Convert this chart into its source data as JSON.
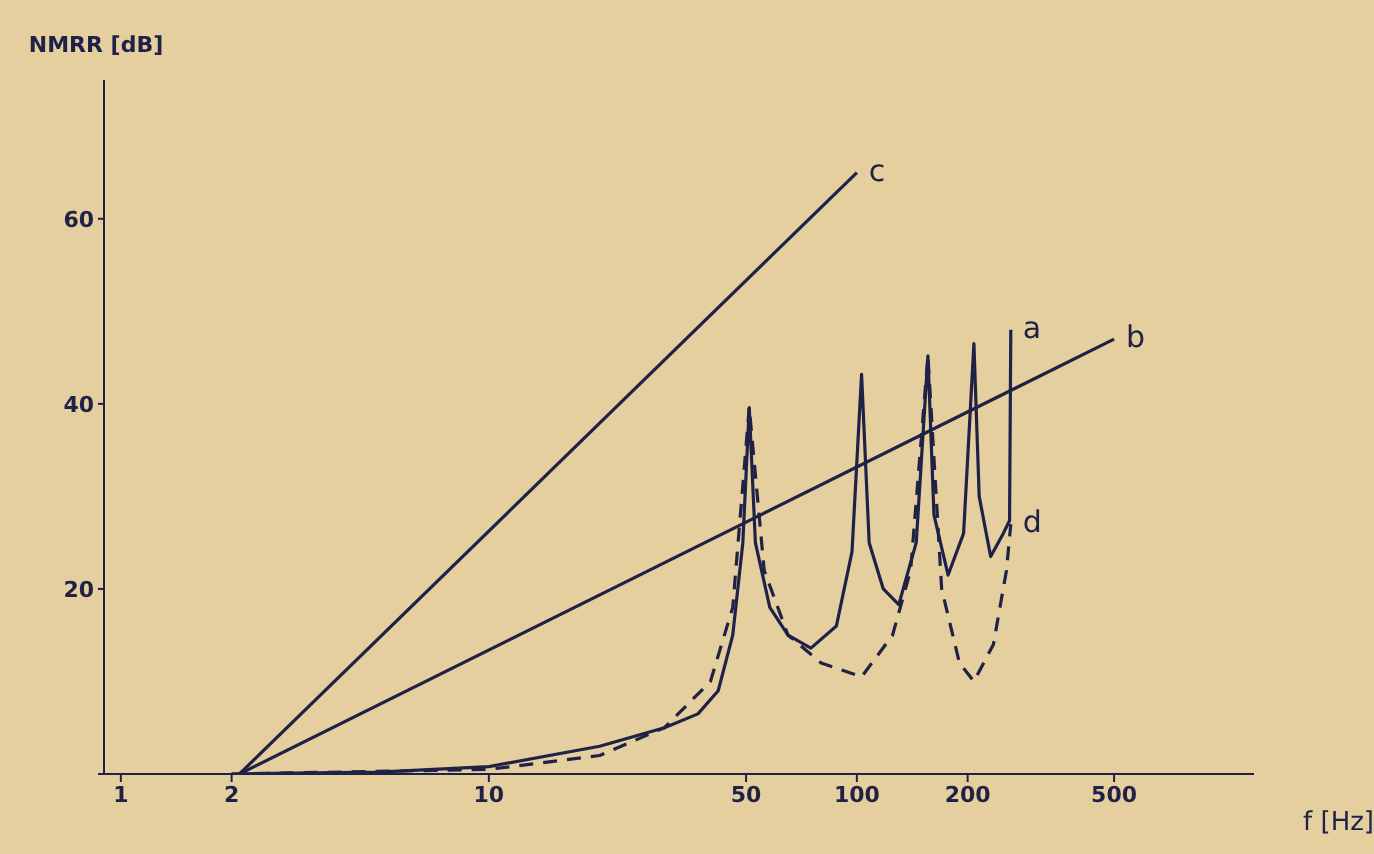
{
  "chart_data": {
    "type": "line",
    "xlabel": "f [Hz]",
    "ylabel": "NMRR [dB]",
    "log": "x",
    "xlim": [
      0.9,
      1200
    ],
    "xticks": [
      1,
      2,
      10,
      50,
      100,
      200,
      500
    ],
    "ylim": [
      0,
      75
    ],
    "yticks": [
      {
        "value": 0,
        "label": null
      },
      20,
      40,
      60
    ],
    "grid": false,
    "legend": false,
    "marker": "none",
    "series": [
      {
        "name": "a",
        "color": "#1f2147",
        "line_style": "solid",
        "x": [
          2,
          5,
          10,
          20,
          30,
          37,
          42,
          46,
          49,
          51,
          53,
          58,
          65,
          75,
          88,
          97,
          103,
          108,
          118,
          130,
          145,
          156,
          162,
          177,
          195,
          208,
          215,
          231,
          250,
          260,
          262
        ],
        "values": [
          0,
          0.2,
          0.8,
          3,
          5,
          6.5,
          9,
          15,
          25,
          39.6,
          25,
          18,
          15,
          13.6,
          16,
          24,
          43.2,
          25,
          20,
          18.3,
          25,
          45.2,
          28,
          21.5,
          26,
          46.5,
          30,
          23.5,
          26,
          27.4,
          48
        ]
      },
      {
        "name": "b",
        "color": "#1f2147",
        "line_style": "solid",
        "x": [
          2.1,
          500
        ],
        "values": [
          0,
          47
        ]
      },
      {
        "name": "c",
        "color": "#1f2147",
        "line_style": "solid",
        "x": [
          2.1,
          100
        ],
        "values": [
          0,
          65
        ]
      },
      {
        "name": "d",
        "color": "#1f2147",
        "line_style": "dashed",
        "x": [
          2,
          10,
          20,
          30,
          40,
          46,
          51,
          56,
          65,
          80,
          103,
          125,
          140,
          156,
          170,
          190,
          208,
          235,
          255,
          262
        ],
        "values": [
          0,
          0.5,
          2,
          5,
          10,
          18,
          39.6,
          22,
          15,
          12,
          10.5,
          15,
          22,
          45.2,
          20,
          12,
          10,
          14,
          22,
          27
        ]
      }
    ]
  }
}
